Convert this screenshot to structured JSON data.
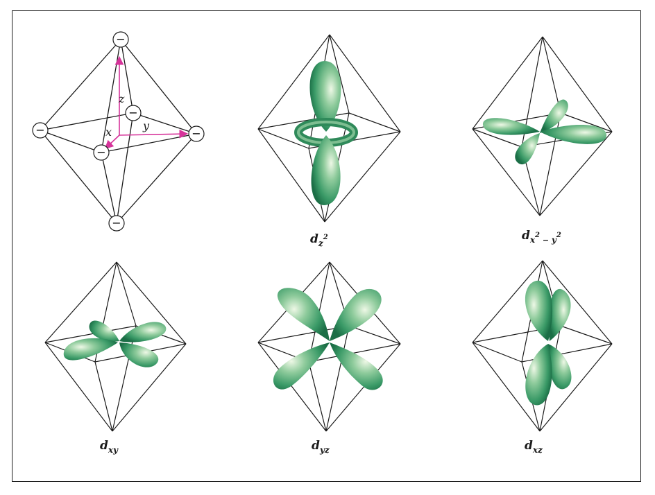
{
  "labels": {
    "ligand": "−",
    "axis_x": "x",
    "axis_y": "y",
    "axis_z": "z"
  },
  "orbitals": [
    {
      "name": "dz2",
      "base": "d",
      "sub": "z",
      "sup": "2"
    },
    {
      "name": "dx2-y2",
      "base": "d",
      "sub1": "x",
      "sup1": "2",
      "mid": " − ",
      "sub2": "y",
      "sup2": "2"
    },
    {
      "name": "dxy",
      "base": "d",
      "sub": "xy"
    },
    {
      "name": "dyz",
      "base": "d",
      "sub": "yz"
    },
    {
      "name": "dxz",
      "base": "d",
      "sub": "xz"
    }
  ],
  "colors": {
    "lobe_dark": "#1f7a4f",
    "lobe_mid": "#4aa874",
    "lobe_light": "#e4f3d9",
    "axis_arrow": "#d6339a",
    "lines": "#1a1a1a"
  }
}
